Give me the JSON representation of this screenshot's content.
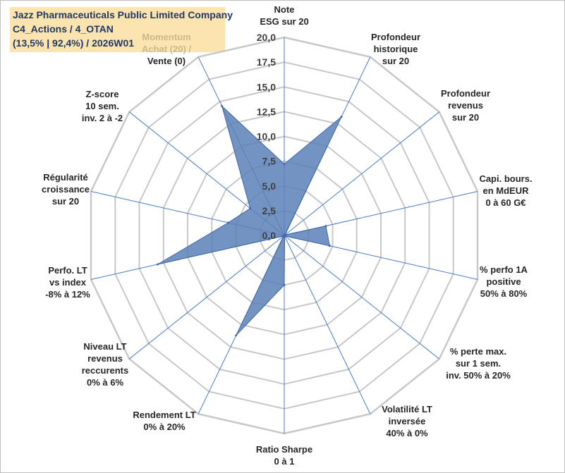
{
  "header": {
    "company": "Jazz Pharmaceuticals Public Limited Company",
    "portfolio": "C4_Actions / 4_OTAN",
    "stats": "(13,5% | 92,4%) / 2026W01"
  },
  "colors": {
    "fill": "#5b80b8",
    "stroke": "#3e68a8",
    "grid": "#c8c8c8",
    "spoke": "#4a7cc9",
    "title_bg": "#fce4b0"
  },
  "chart_data": {
    "type": "radar",
    "title": "Jazz Pharmaceuticals Public Limited Company",
    "r_range": [
      0,
      20
    ],
    "r_ticks": [
      "0,0",
      "2,5",
      "5,0",
      "7,5",
      "10,0",
      "12,5",
      "15,0",
      "17,5",
      "20,0"
    ],
    "axes": [
      {
        "label": [
          "Note",
          "ESG sur 20"
        ],
        "value": 7.2
      },
      {
        "label": [
          "Profondeur",
          "historique",
          "sur 20"
        ],
        "value": 13.3
      },
      {
        "label": [
          "Profondeur",
          "revenus",
          "sur 20"
        ],
        "value": 0.1
      },
      {
        "label": [
          "Capi. bours.",
          "en MdEUR",
          "0 à 60 G€"
        ],
        "value": 4.3
      },
      {
        "label": [
          "% perfo 1A",
          "positive",
          "50% à 80%"
        ],
        "value": 4.7
      },
      {
        "label": [
          "% perte max.",
          "sur 1 sem.",
          "inv. 50% à 20%"
        ],
        "value": 0.1
      },
      {
        "label": [
          "Volatilité LT",
          "inversée",
          "40% à 0%"
        ],
        "value": 0.1
      },
      {
        "label": [
          "Ratio Sharpe",
          "0 à 1"
        ],
        "value": 5.0
      },
      {
        "label": [
          "Rendement LT",
          "0% à 20%"
        ],
        "value": 11.2
      },
      {
        "label": [
          "Niveau LT",
          "revenus",
          "reccurents",
          "0% à 6%"
        ],
        "value": 0.1
      },
      {
        "label": [
          "Perfo. LT",
          "vs index",
          "-8% à 12%"
        ],
        "value": 13.1
      },
      {
        "label": [
          "Régularité",
          "croissance",
          "sur 20"
        ],
        "value": 5.8
      },
      {
        "label": [
          "Z-score",
          "10 sem.",
          "inv. 2 à -2"
        ],
        "value": 4.4
      },
      {
        "label": [
          "Momentum",
          "Achat (20) /",
          "Vente (0)"
        ],
        "value": 14.5
      }
    ],
    "series": [
      {
        "name": "Jazz Pharmaceuticals Public Limited Company"
      }
    ]
  }
}
